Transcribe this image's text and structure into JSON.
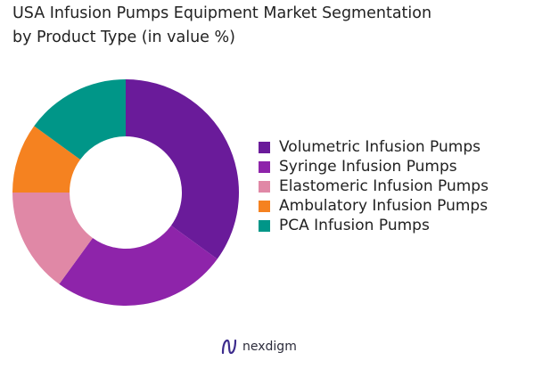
{
  "title_lines": [
    "USA Infusion Pumps Equipment Market Segmentation",
    "by Product Type (in value %)"
  ],
  "brand": {
    "name": "nexdigm",
    "icon": "nexdigm-logo-icon",
    "color": "#3d2c8d"
  },
  "chart_data": {
    "type": "pie",
    "variant": "donut",
    "title": "USA Infusion Pumps Equipment Market Segmentation by Product Type (in value %)",
    "legend_position": "right",
    "categories": [
      "Volumetric Infusion Pumps",
      "Syringe Infusion Pumps",
      "Elastomeric Infusion Pumps",
      "Ambulatory Infusion Pumps",
      "PCA Infusion Pumps"
    ],
    "values": [
      35,
      25,
      15,
      10,
      15
    ],
    "colors": [
      "#6a1b9a",
      "#8e24aa",
      "#e088a6",
      "#f58220",
      "#009688"
    ]
  }
}
